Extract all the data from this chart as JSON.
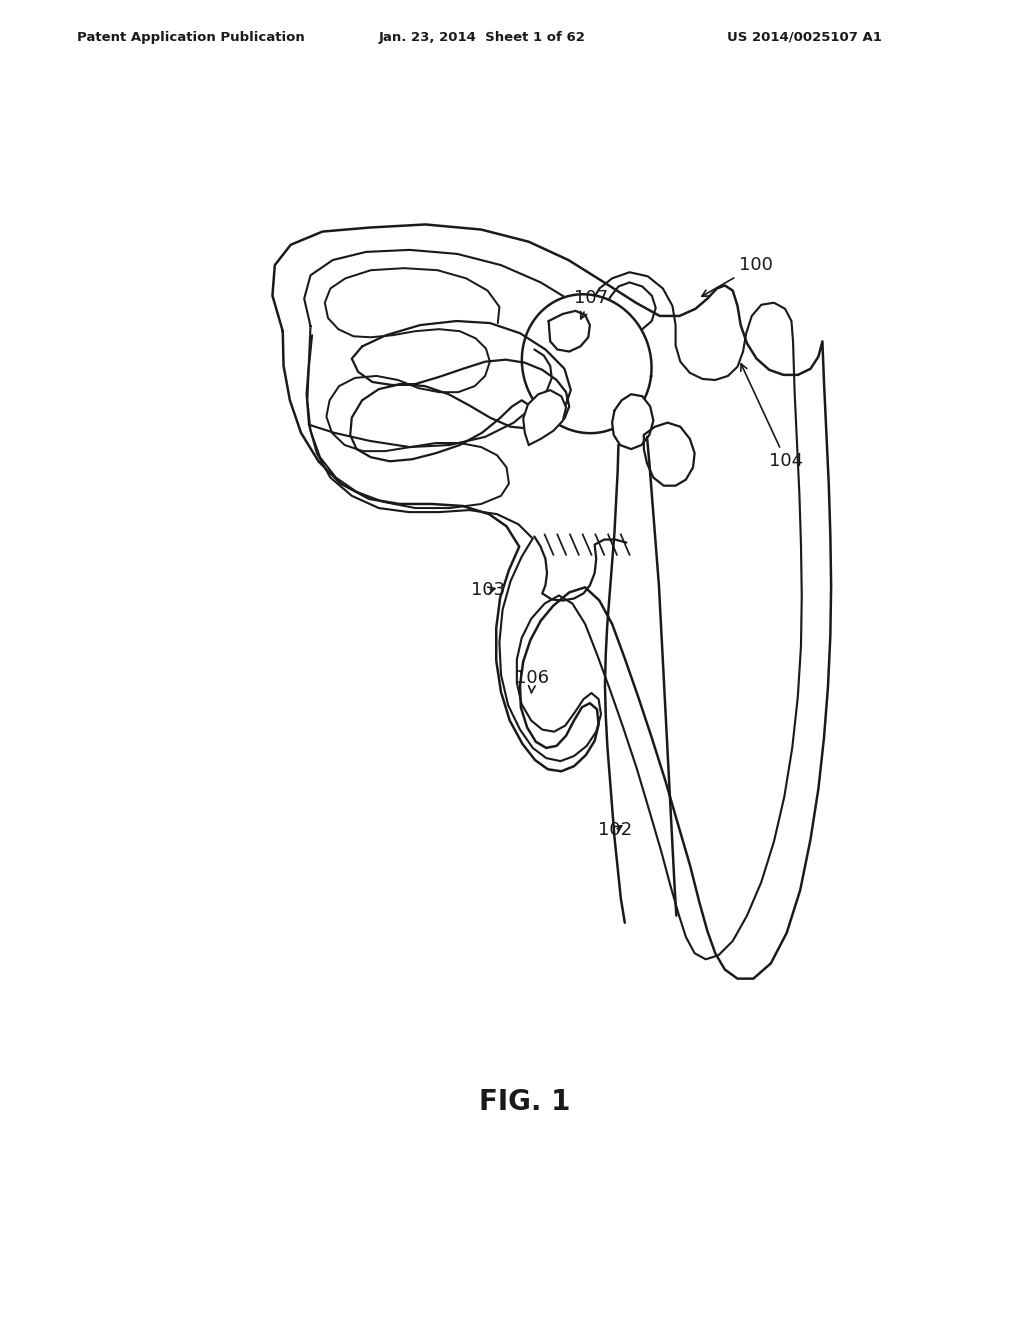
{
  "title": "",
  "fig_label": "FIG. 1",
  "header_left": "Patent Application Publication",
  "header_mid": "Jan. 23, 2014  Sheet 1 of 62",
  "header_right": "US 2014/0025107 A1",
  "background_color": "#ffffff",
  "line_color": "#1a1a1a",
  "line_width": 1.8
}
